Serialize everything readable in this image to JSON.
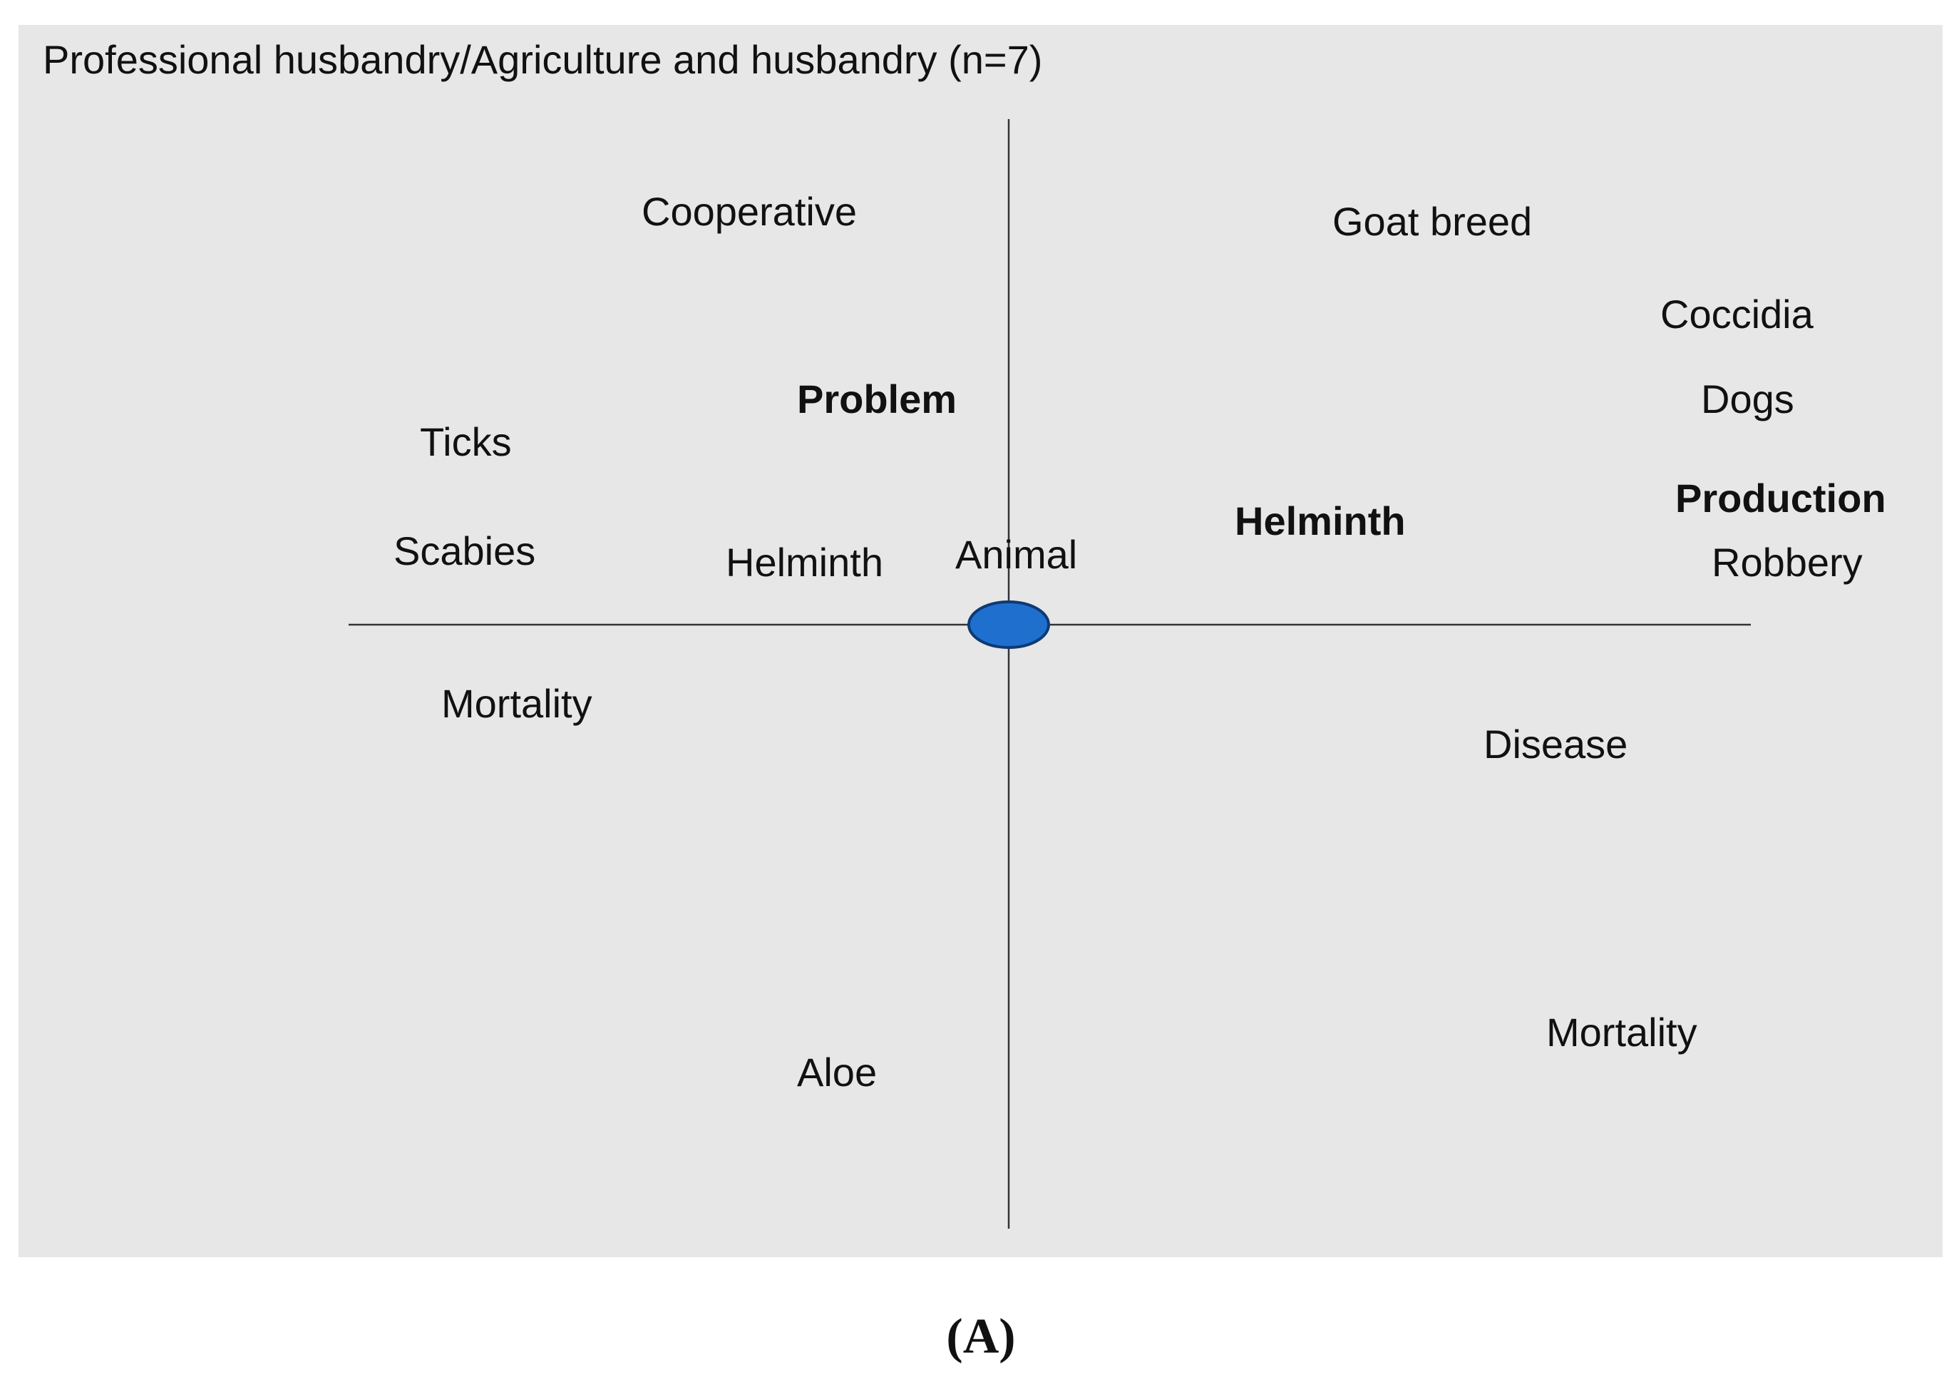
{
  "title": "Professional husbandry/Agriculture and husbandry (n=7)",
  "center": {
    "label": "Animal"
  },
  "words": [
    {
      "label": "Cooperative"
    },
    {
      "label": "Goat breed"
    },
    {
      "label": "Coccidia"
    },
    {
      "label": "Problem",
      "bold": true
    },
    {
      "label": "Dogs"
    },
    {
      "label": "Ticks"
    },
    {
      "label": "Production",
      "bold": true
    },
    {
      "label": "Helminth",
      "bold": true
    },
    {
      "label": "Robbery"
    },
    {
      "label": "Scabies"
    },
    {
      "label": "Helminth"
    },
    {
      "label": "Mortality"
    },
    {
      "label": "Disease"
    },
    {
      "label": "Mortality"
    },
    {
      "label": "Aloe"
    }
  ],
  "caption": "(A)"
}
